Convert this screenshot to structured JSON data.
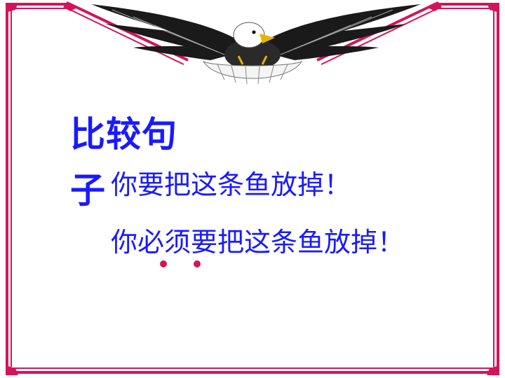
{
  "slide": {
    "title": "比较句子",
    "sentences": [
      {
        "text": "你要把这条鱼放掉！"
      },
      {
        "text": "你必须要把这条鱼放掉！"
      }
    ]
  },
  "decoration": {
    "frame_color": "#d4145a",
    "text_color": "#1a1aff",
    "eagle": "eagle-illustration",
    "emphasis_marks": 2
  }
}
